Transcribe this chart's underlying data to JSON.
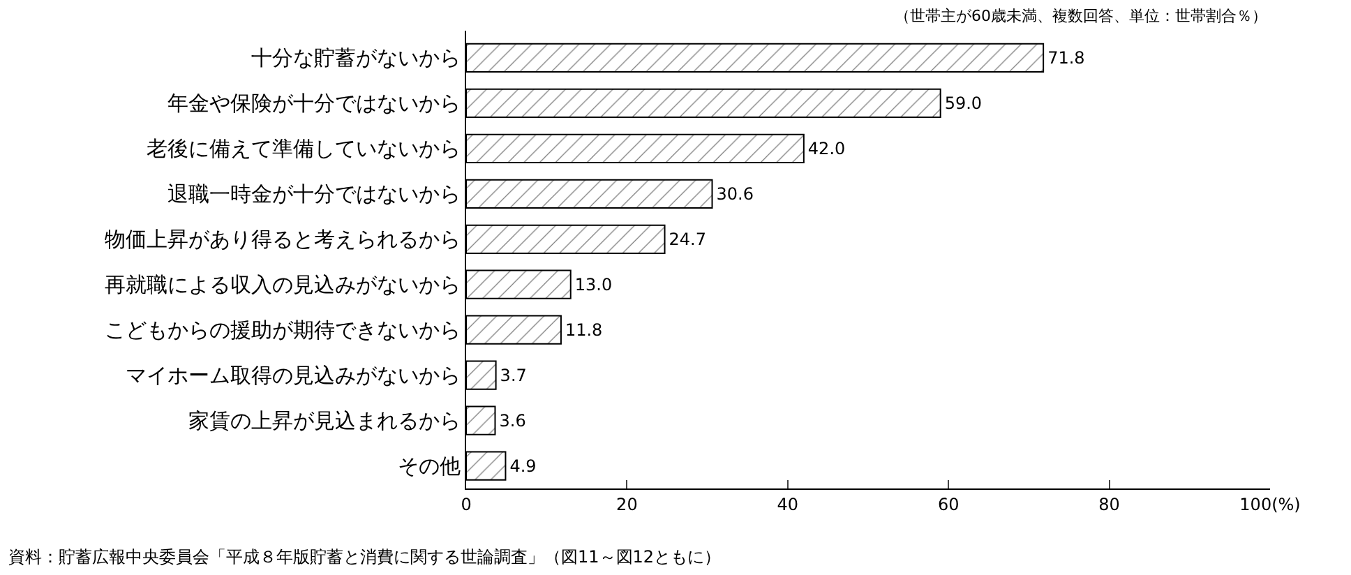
{
  "chart_data": {
    "type": "bar",
    "orientation": "horizontal",
    "categories": [
      "十分な貯蓄がないから",
      "年金や保険が十分ではないから",
      "老後に備えて準備していないから",
      "退職一時金が十分ではないから",
      "物価上昇があり得ると考えられるから",
      "再就職による収入の見込みがないから",
      "こどもからの援助が期待できないから",
      "マイホーム取得の見込みがないから",
      "家賃の上昇が見込まれるから",
      "その他"
    ],
    "values": [
      71.8,
      59.0,
      42.0,
      30.6,
      24.7,
      13.0,
      11.8,
      3.7,
      3.6,
      4.9
    ],
    "value_labels": [
      "71.8",
      "59.0",
      "42.0",
      "30.6",
      "24.7",
      "13.0",
      "11.8",
      "3.7",
      "3.6",
      "4.9"
    ],
    "color": "#000000",
    "xlim": [
      0,
      100
    ],
    "xticks": [
      0,
      20,
      40,
      60,
      80,
      {
        "value": 100,
        "label": "100(%)"
      }
    ],
    "legend": false,
    "annotations": [
      "（世帯主が60歳未満、複数回答、単位：世帯割合％）",
      "資料：貯蓄広報中央委員会「平成８年版貯蓄と消費に関する世論調査」（図11～図12ともに）"
    ]
  }
}
